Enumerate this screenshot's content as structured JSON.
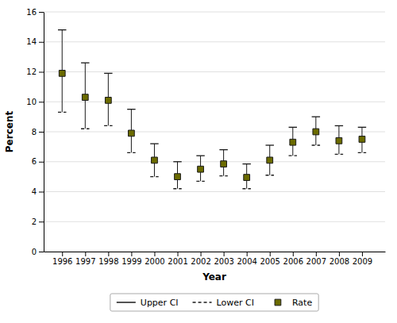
{
  "chart_data": {
    "type": "scatter",
    "xlabel": "Year",
    "ylabel": "Percent",
    "x": [
      1996,
      1997,
      1998,
      1999,
      2000,
      2001,
      2002,
      2003,
      2004,
      2005,
      2006,
      2007,
      2008,
      2009
    ],
    "xlim": [
      1995.2,
      2010.0
    ],
    "xticks": [
      1996,
      1997,
      1998,
      1999,
      2000,
      2001,
      2002,
      2003,
      2004,
      2005,
      2006,
      2007,
      2008,
      2009
    ],
    "ylim": [
      0,
      16
    ],
    "yticks": [
      0,
      2,
      4,
      6,
      8,
      10,
      12,
      14,
      16
    ],
    "grid": true,
    "series": [
      {
        "name": "Upper CI",
        "type": "error_cap",
        "color": "#1a1a1a",
        "line_style": "solid",
        "values": [
          14.8,
          12.6,
          11.9,
          9.5,
          7.2,
          6.0,
          6.4,
          6.8,
          5.85,
          7.1,
          8.3,
          9.0,
          8.4,
          8.3
        ]
      },
      {
        "name": "Lower CI",
        "type": "error_cap",
        "color": "#1a1a1a",
        "line_style": "dashed",
        "values": [
          9.3,
          8.2,
          8.4,
          6.6,
          5.0,
          4.2,
          4.7,
          5.05,
          4.2,
          5.1,
          6.4,
          7.1,
          6.5,
          6.6
        ]
      },
      {
        "name": "Rate",
        "type": "scatter",
        "color": "#6b6b00",
        "marker": "square",
        "values": [
          11.9,
          10.3,
          10.1,
          7.9,
          6.1,
          5.0,
          5.5,
          5.85,
          4.95,
          6.1,
          7.3,
          8.0,
          7.4,
          7.5
        ]
      }
    ]
  }
}
